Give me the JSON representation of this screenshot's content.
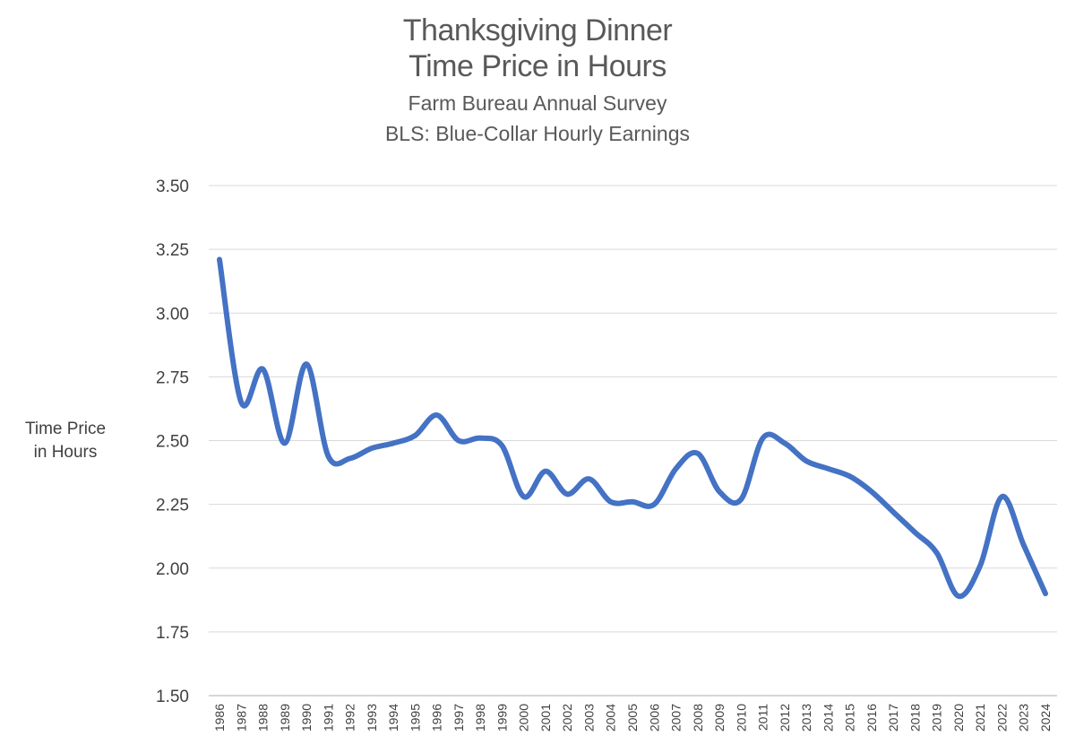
{
  "chart_data": {
    "type": "line",
    "title": [
      "Thanksgiving Dinner",
      "Time Price in Hours"
    ],
    "subtitle": [
      "Farm Bureau Annual Survey",
      "BLS: Blue-Collar Hourly Earnings"
    ],
    "ylabel": [
      "Time Price",
      "in Hours"
    ],
    "xlabel": "",
    "x": [
      "1986",
      "1987",
      "1988",
      "1989",
      "1990",
      "1991",
      "1992",
      "1993",
      "1994",
      "1995",
      "1996",
      "1997",
      "1998",
      "1999",
      "2000",
      "2001",
      "2002",
      "2003",
      "2004",
      "2005",
      "2006",
      "2007",
      "2008",
      "2009",
      "2010",
      "2011",
      "2012",
      "2013",
      "2014",
      "2015",
      "2016",
      "2017",
      "2018",
      "2019",
      "2020",
      "2021",
      "2022",
      "2023",
      "2024"
    ],
    "series": [
      {
        "values": [
          3.21,
          2.65,
          2.78,
          2.49,
          2.8,
          2.44,
          2.43,
          2.47,
          2.49,
          2.52,
          2.6,
          2.5,
          2.51,
          2.48,
          2.28,
          2.38,
          2.29,
          2.35,
          2.26,
          2.26,
          2.25,
          2.39,
          2.45,
          2.3,
          2.27,
          2.51,
          2.49,
          2.42,
          2.39,
          2.36,
          2.3,
          2.22,
          2.14,
          2.06,
          1.89,
          2.01,
          2.28,
          2.09,
          1.9
        ],
        "color": "#4472C4"
      }
    ],
    "yticks": [
      "1.50",
      "1.75",
      "2.00",
      "2.25",
      "2.50",
      "2.75",
      "3.00",
      "3.25",
      "3.50"
    ],
    "ylim": [
      1.5,
      3.5
    ],
    "grid": true,
    "legend": "none"
  }
}
